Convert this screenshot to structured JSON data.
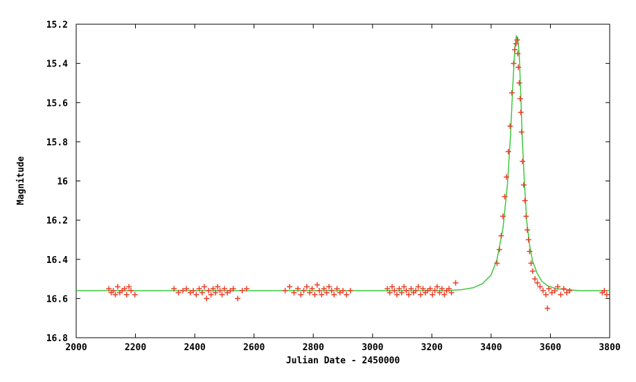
{
  "chart_data": {
    "type": "scatter",
    "title": "",
    "xlabel": "Julian Date - 2450000",
    "ylabel": "Magnitude",
    "xlim": [
      2000,
      3800
    ],
    "ylim": [
      16.8,
      15.2
    ],
    "y_inverted": true,
    "grid": false,
    "legend": "none",
    "x_ticks": [
      "2000",
      "2200",
      "2400",
      "2600",
      "2800",
      "3000",
      "3200",
      "3400",
      "3600",
      "3800"
    ],
    "y_ticks": [
      "15.2",
      "15.4",
      "15.6",
      "15.8",
      "16",
      "16.2",
      "16.4",
      "16.6",
      "16.8"
    ],
    "colors": {
      "points": "#e8402a",
      "model": "#3cc83c"
    },
    "model": {
      "type": "line",
      "baseline": 16.56,
      "x": [
        2000,
        3250,
        3300,
        3340,
        3370,
        3400,
        3420,
        3440,
        3455,
        3465,
        3473,
        3480,
        3485,
        3490,
        3495,
        3500,
        3505,
        3512,
        3520,
        3530,
        3540,
        3555,
        3570,
        3590,
        3620,
        3660,
        3700,
        3800
      ],
      "y": [
        16.56,
        16.56,
        16.555,
        16.545,
        16.525,
        16.48,
        16.4,
        16.24,
        16.02,
        15.78,
        15.52,
        15.32,
        15.26,
        15.27,
        15.36,
        15.56,
        15.78,
        16.0,
        16.2,
        16.33,
        16.41,
        16.47,
        16.51,
        16.535,
        16.55,
        16.555,
        16.56,
        16.56
      ]
    },
    "series": [
      {
        "type": "scatter",
        "x": [
          2110,
          2118,
          2125,
          2132,
          2140,
          2147,
          2155,
          2163,
          2170,
          2178,
          2185,
          2198,
          2330,
          2345,
          2360,
          2372,
          2385,
          2395,
          2405,
          2415,
          2425,
          2432,
          2440,
          2447,
          2455,
          2462,
          2470,
          2477,
          2485,
          2492,
          2500,
          2510,
          2520,
          2530,
          2545,
          2560,
          2575,
          2705,
          2720,
          2735,
          2748,
          2758,
          2768,
          2778,
          2788,
          2796,
          2805,
          2813,
          2820,
          2828,
          2836,
          2845,
          2853,
          2862,
          2870,
          2880,
          2890,
          2900,
          2912,
          2925,
          3050,
          3058,
          3066,
          3074,
          3082,
          3090,
          3098,
          3106,
          3114,
          3122,
          3130,
          3138,
          3146,
          3154,
          3162,
          3170,
          3178,
          3186,
          3194,
          3202,
          3210,
          3218,
          3226,
          3234,
          3242,
          3250,
          3258,
          3266,
          3280,
          3420,
          3428,
          3434,
          3440,
          3446,
          3452,
          3458,
          3464,
          3470,
          3476,
          3480,
          3484,
          3488,
          3490,
          3492,
          3495,
          3498,
          3500,
          3503,
          3506,
          3510,
          3514,
          3518,
          3522,
          3526,
          3530,
          3535,
          3540,
          3548,
          3556,
          3565,
          3575,
          3585,
          3590,
          3595,
          3605,
          3615,
          3625,
          3635,
          3645,
          3655,
          3665,
          3775,
          3782,
          3790
        ],
        "y": [
          16.55,
          16.57,
          16.56,
          16.58,
          16.54,
          16.57,
          16.56,
          16.55,
          16.58,
          16.54,
          16.56,
          16.58,
          16.55,
          16.57,
          16.56,
          16.55,
          16.57,
          16.56,
          16.58,
          16.55,
          16.57,
          16.54,
          16.6,
          16.56,
          16.58,
          16.55,
          16.57,
          16.54,
          16.56,
          16.58,
          16.55,
          16.57,
          16.56,
          16.55,
          16.6,
          16.56,
          16.55,
          16.56,
          16.54,
          16.57,
          16.55,
          16.58,
          16.56,
          16.54,
          16.57,
          16.55,
          16.58,
          16.53,
          16.56,
          16.58,
          16.55,
          16.57,
          16.54,
          16.56,
          16.58,
          16.55,
          16.57,
          16.56,
          16.58,
          16.56,
          16.55,
          16.57,
          16.54,
          16.56,
          16.58,
          16.55,
          16.57,
          16.54,
          16.56,
          16.58,
          16.55,
          16.57,
          16.56,
          16.54,
          16.58,
          16.55,
          16.57,
          16.56,
          16.55,
          16.58,
          16.56,
          16.54,
          16.57,
          16.55,
          16.58,
          16.56,
          16.55,
          16.57,
          16.52,
          16.42,
          16.35,
          16.28,
          16.18,
          16.08,
          15.98,
          15.85,
          15.72,
          15.55,
          15.4,
          15.33,
          15.3,
          15.28,
          15.35,
          15.42,
          15.5,
          15.58,
          15.65,
          15.75,
          15.9,
          16.02,
          16.1,
          16.18,
          16.25,
          16.3,
          16.36,
          16.42,
          16.46,
          16.5,
          16.52,
          16.54,
          16.56,
          16.58,
          16.65,
          16.55,
          16.57,
          16.56,
          16.54,
          16.58,
          16.55,
          16.57,
          16.56,
          16.57,
          16.56,
          16.58
        ]
      }
    ]
  }
}
